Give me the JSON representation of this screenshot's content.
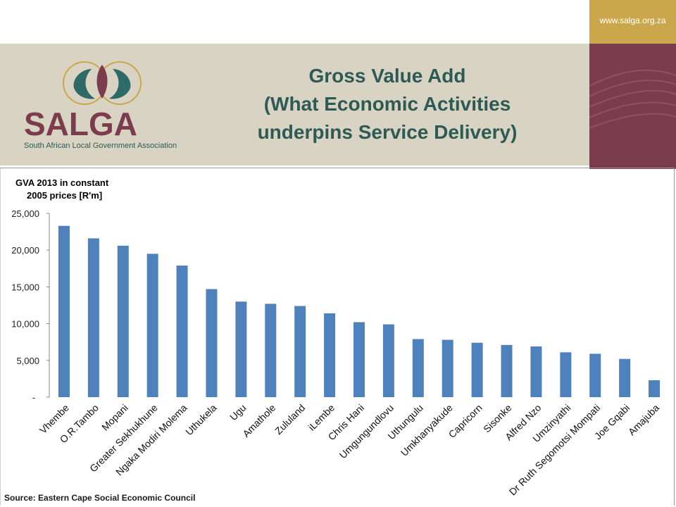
{
  "header": {
    "site_url": "www.salga.org.za",
    "title_line1": "Gross Value Add",
    "title_line2": "(What Economic Activities",
    "title_line3": "underpins Service Delivery)",
    "logo_text": "SALGA",
    "logo_subtitle": "South African Local Government Association"
  },
  "colors": {
    "title": "#2e5a55",
    "bar": "#4f81bd",
    "gold": "#c9a74a",
    "maroon": "#7b3d4d",
    "band": "#d8d3c3",
    "logo_text": "#7b3d4d",
    "logo_teal": "#2e6b66"
  },
  "footer": {
    "source": "Source: Eastern Cape Social  Economic Council"
  },
  "chart_data": {
    "type": "bar",
    "title": "GVA 2013 in constant 2005 prices [R'm]",
    "title_line1": "GVA 2013 in constant",
    "title_line2": "2005 prices [R'm]",
    "xlabel": "",
    "ylabel": "",
    "ylim": [
      0,
      25000
    ],
    "yticks": [
      "-",
      "5,000",
      "10,000",
      "15,000",
      "20,000",
      "25,000"
    ],
    "grid": false,
    "categories": [
      "Vhembe",
      "O.R.Tambo",
      "Mopani",
      "Greater Sekhukhune",
      "Ngaka Modiri Molema",
      "Uthukela",
      "Ugu",
      "Amathole",
      "Zululand",
      "iLembe",
      "Chris Hani",
      "Umgungundlovu",
      "Uthungulu",
      "Umkhanyakude",
      "Capricorn",
      "Sisonke",
      "Alfred Nzo",
      "Umzinyathi",
      "Dr Ruth Segomotsi Mompati",
      "Joe Gqabi",
      "Amajuba"
    ],
    "values": [
      23300,
      21600,
      20600,
      19500,
      17900,
      14700,
      13000,
      12700,
      12400,
      11400,
      10200,
      9900,
      7900,
      7800,
      7400,
      7100,
      6900,
      6100,
      5900,
      5200,
      2300
    ]
  }
}
